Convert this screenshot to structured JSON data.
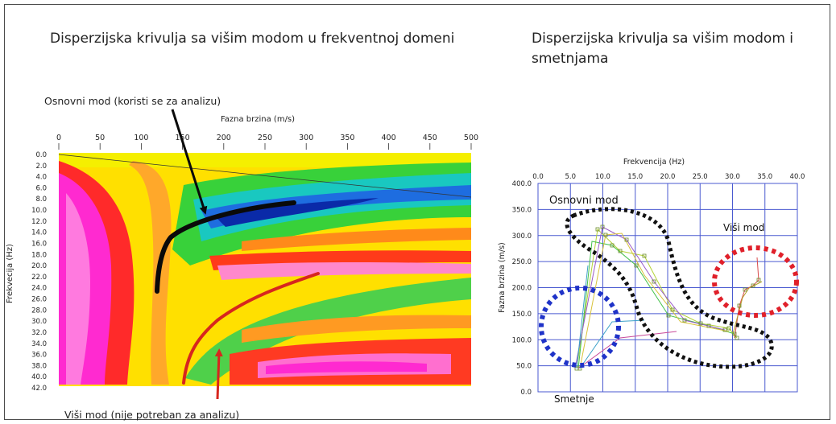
{
  "left_panel": {
    "title": "Disperzijska krivulja sa višim modom u frekventnoj domeni",
    "annotation_basic_mode": "Osnovni mod (koristi se za analizu)",
    "annotation_higher_mode": "Viši mod (nije potreban za analizu)",
    "x_axis_label": "Fazna brzina (m/s)",
    "y_axis_label": "Frekvecija (Hz)",
    "x_ticks": [
      "0",
      "50",
      "100",
      "150",
      "200",
      "250",
      "300",
      "350",
      "400",
      "450",
      "500"
    ],
    "y_ticks": [
      "0.0",
      "2.0",
      "4.0",
      "6.0",
      "8.0",
      "10.0",
      "12.0",
      "14.0",
      "16.0",
      "18.0",
      "20.0",
      "22.0",
      "24.0",
      "26.0",
      "28.0",
      "30.0",
      "32.0",
      "34.0",
      "36.0",
      "38.0",
      "40.0",
      "42.0"
    ],
    "colors": {
      "basic_mode_curve": "#0a0a0a",
      "higher_mode_curve": "#d7261e",
      "arrow": "#0a0a0a",
      "higher_arrow": "#d7261e"
    }
  },
  "right_panel": {
    "title": "Disperzijska krivulja sa višim modom i smetnjama",
    "x_axis_label": "Frekvencija (Hz)",
    "y_axis_label": "Fazna brzina (m/s)",
    "x_ticks": [
      "0.0",
      "5.0",
      "10.0",
      "15.0",
      "20.0",
      "25.0",
      "30.0",
      "35.0",
      "40.0"
    ],
    "y_ticks": [
      "400.0",
      "350.0",
      "300.0",
      "250.0",
      "200.0",
      "150.0",
      "100.0",
      "50.0",
      "0.0"
    ],
    "label_basic_mode": "Osnovni mod",
    "label_higher_mode": "Viši mod",
    "label_noise": "Smetnje",
    "colors": {
      "basic_outline": "#111111",
      "higher_outline": "#e0202a",
      "noise_outline": "#1f33c8",
      "grid": "#4a5ad0"
    }
  }
}
